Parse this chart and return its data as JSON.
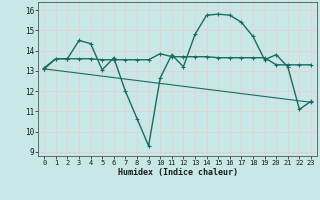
{
  "xlabel": "Humidex (Indice chaleur)",
  "bg_color": "#c8e8e8",
  "grid_color": "#dcdcdc",
  "line_color": "#1a6b60",
  "xlim": [
    -0.5,
    23.5
  ],
  "ylim": [
    8.8,
    16.4
  ],
  "yticks": [
    9,
    10,
    11,
    12,
    13,
    14,
    15,
    16
  ],
  "xticks": [
    0,
    1,
    2,
    3,
    4,
    5,
    6,
    7,
    8,
    9,
    10,
    11,
    12,
    13,
    14,
    15,
    16,
    17,
    18,
    19,
    20,
    21,
    22,
    23
  ],
  "line1_x": [
    0,
    1,
    2,
    3,
    4,
    5,
    6,
    7,
    8,
    9,
    10,
    11,
    12,
    13,
    14,
    15,
    16,
    17,
    18,
    19,
    20,
    21,
    22,
    23
  ],
  "line1_y": [
    13.1,
    13.6,
    13.6,
    14.5,
    14.35,
    13.05,
    13.65,
    12.0,
    10.65,
    9.3,
    12.65,
    13.8,
    13.2,
    14.8,
    15.75,
    15.8,
    15.75,
    15.4,
    14.7,
    13.55,
    13.8,
    13.2,
    11.1,
    11.5
  ],
  "line2_x": [
    0,
    1,
    2,
    3,
    4,
    5,
    6,
    7,
    8,
    9,
    10,
    11,
    12,
    13,
    14,
    15,
    16,
    17,
    18,
    19,
    20,
    21,
    22,
    23
  ],
  "line2_y": [
    13.15,
    13.6,
    13.6,
    13.6,
    13.6,
    13.55,
    13.55,
    13.55,
    13.55,
    13.55,
    13.85,
    13.7,
    13.7,
    13.7,
    13.7,
    13.65,
    13.65,
    13.65,
    13.65,
    13.65,
    13.3,
    13.3,
    13.3,
    13.3
  ],
  "line3_x": [
    0,
    23
  ],
  "line3_y": [
    13.1,
    11.45
  ]
}
